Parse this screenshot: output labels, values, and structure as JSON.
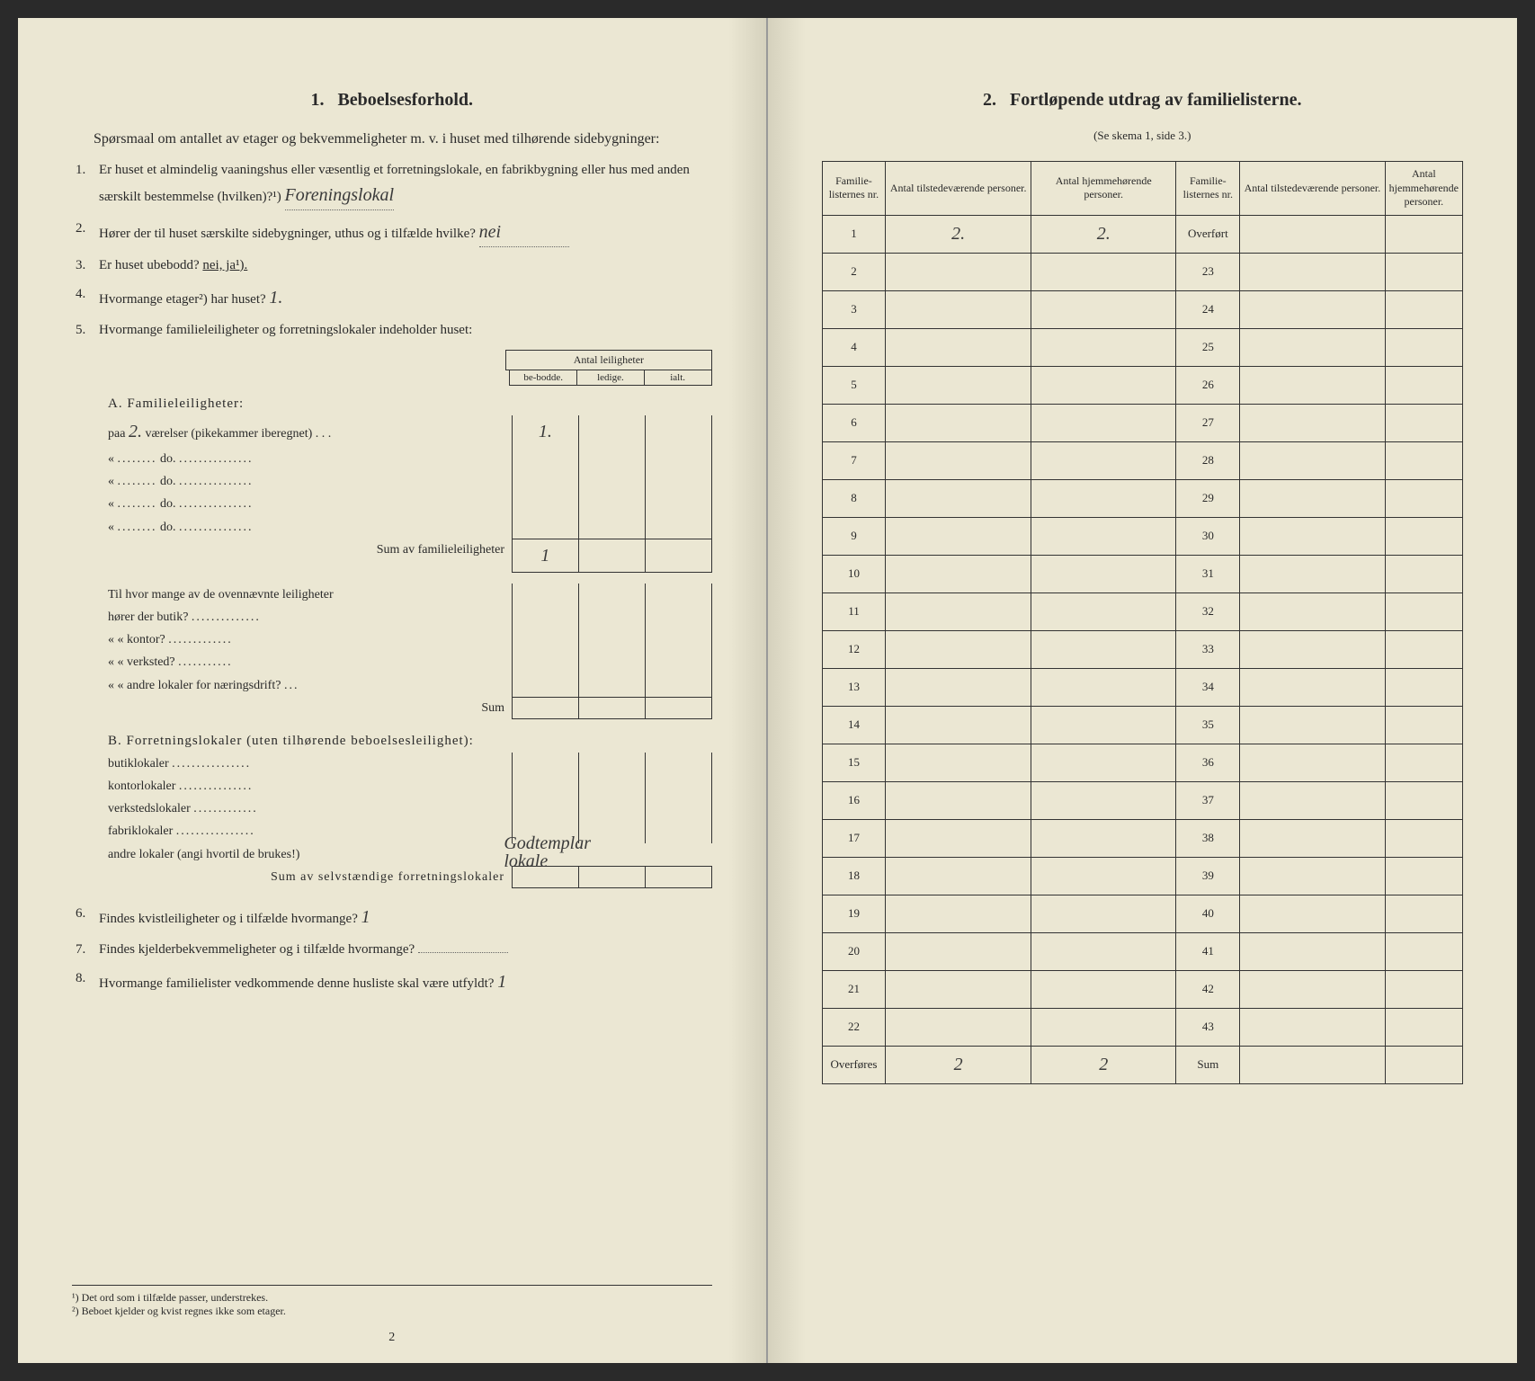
{
  "leftPage": {
    "sectionNumber": "1.",
    "sectionTitle": "Beboelsesforhold.",
    "intro": "Spørsmaal om antallet av etager og bekvemmeligheter m. v. i huset med tilhørende sidebygninger:",
    "questions": [
      {
        "num": "1.",
        "text": "Er huset et almindelig vaaningshus eller væsentlig et forretningslokale, en fabrikbygning eller hus med anden særskilt bestemmelse (hvilken)?¹)",
        "answer": "Foreningslokal"
      },
      {
        "num": "2.",
        "text": "Hører der til huset særskilte sidebygninger, uthus og i tilfælde hvilke?",
        "answer": "nei"
      },
      {
        "num": "3.",
        "text": "Er huset ubebodd?",
        "answer": "nei, ja¹)."
      },
      {
        "num": "4.",
        "text": "Hvormange etager²) har huset?",
        "answer": "1."
      },
      {
        "num": "5.",
        "text": "Hvormange familieleiligheter og forretningslokaler indeholder huset:"
      }
    ],
    "tableHeader": {
      "main": "Antal leiligheter",
      "cols": [
        "be-bodde.",
        "ledige.",
        "ialt."
      ]
    },
    "sectionA": {
      "title": "A. Familieleiligheter:",
      "rows": [
        {
          "label": "paa",
          "hw": "2.",
          "suffix": "værelser (pikekammer iberegnet) . . .",
          "val1": "1."
        },
        {
          "label": "«",
          "suffix": "do."
        },
        {
          "label": "«",
          "suffix": "do."
        },
        {
          "label": "«",
          "suffix": "do."
        },
        {
          "label": "«",
          "suffix": "do."
        }
      ],
      "sumLabel": "Sum av familieleiligheter",
      "sumVal": "1",
      "subQuestions": [
        "Til hvor mange av de ovennævnte leiligheter",
        "hører der butik?",
        "« « kontor?",
        "« « verksted?",
        "« « andre lokaler for næringsdrift?"
      ],
      "subSumLabel": "Sum"
    },
    "sectionB": {
      "title": "B. Forretningslokaler (uten tilhørende beboelsesleilighet):",
      "rows": [
        "butiklokaler",
        "kontorlokaler",
        "verkstedslokaler",
        "fabriklokaler",
        "andre lokaler (angi hvortil de brukes!)"
      ],
      "handwrittenB": "Godtemplar\nlokale",
      "sumLabel": "Sum av selvstændige forretningslokaler"
    },
    "q6": {
      "num": "6.",
      "text": "Findes kvistleiligheter og i tilfælde hvormange?",
      "answer": "1"
    },
    "q7": {
      "num": "7.",
      "text": "Findes kjelderbekvemmeligheter og i tilfælde hvormange?"
    },
    "q8": {
      "num": "8.",
      "text": "Hvormange familielister vedkommende denne husliste skal være utfyldt?",
      "answer": "1"
    },
    "footnotes": [
      "¹) Det ord som i tilfælde passer, understrekes.",
      "²) Beboet kjelder og kvist regnes ikke som etager."
    ],
    "pageNum": "2"
  },
  "rightPage": {
    "sectionNumber": "2.",
    "sectionTitle": "Fortløpende utdrag av familielisterne.",
    "subtitle": "(Se skema 1, side 3.)",
    "headers": {
      "col1": "Familie-listernes nr.",
      "col2": "Antal tilstedeværende personer.",
      "col3": "Antal hjemmehørende personer.",
      "col4": "Familie-listernes nr.",
      "col5": "Antal tilstedeværende personer.",
      "col6": "Antal hjemmehørende personer."
    },
    "overfortLabel": "Overført",
    "rows": [
      {
        "n1": "1",
        "v1": "2.",
        "v2": "2.",
        "n2": "Overført"
      },
      {
        "n1": "2",
        "n2": "23"
      },
      {
        "n1": "3",
        "n2": "24"
      },
      {
        "n1": "4",
        "n2": "25"
      },
      {
        "n1": "5",
        "n2": "26"
      },
      {
        "n1": "6",
        "n2": "27"
      },
      {
        "n1": "7",
        "n2": "28"
      },
      {
        "n1": "8",
        "n2": "29"
      },
      {
        "n1": "9",
        "n2": "30"
      },
      {
        "n1": "10",
        "n2": "31"
      },
      {
        "n1": "11",
        "n2": "32"
      },
      {
        "n1": "12",
        "n2": "33"
      },
      {
        "n1": "13",
        "n2": "34"
      },
      {
        "n1": "14",
        "n2": "35"
      },
      {
        "n1": "15",
        "n2": "36"
      },
      {
        "n1": "16",
        "n2": "37"
      },
      {
        "n1": "17",
        "n2": "38"
      },
      {
        "n1": "18",
        "n2": "39"
      },
      {
        "n1": "19",
        "n2": "40"
      },
      {
        "n1": "20",
        "n2": "41"
      },
      {
        "n1": "21",
        "n2": "42"
      },
      {
        "n1": "22",
        "n2": "43"
      }
    ],
    "footerRow": {
      "label1": "Overføres",
      "v1": "2",
      "v2": "2",
      "label2": "Sum"
    },
    "colors": {
      "paper": "#ebe7d3",
      "ink": "#2a2a2a",
      "border": "#333333"
    }
  }
}
